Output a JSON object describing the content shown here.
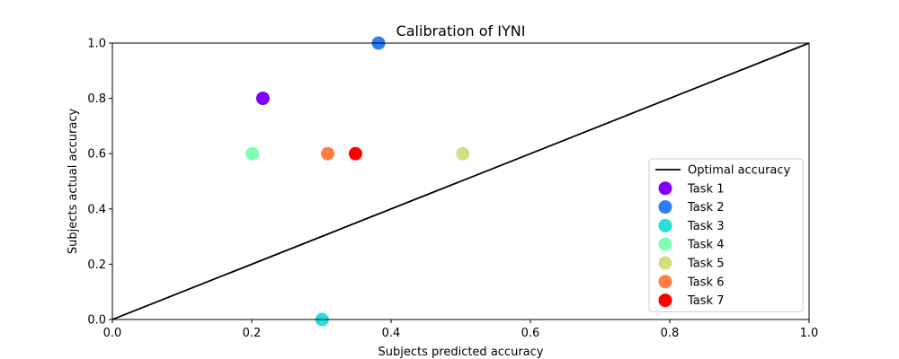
{
  "chart_data": {
    "type": "scatter",
    "title": "Calibration of IYNI",
    "xlabel": "Subjects predicted accuracy",
    "ylabel": "Subjects actual accuracy",
    "xlim": [
      0.0,
      1.0
    ],
    "ylim": [
      0.0,
      1.0
    ],
    "xticks": [
      "0.0",
      "0.2",
      "0.4",
      "0.6",
      "0.8",
      "1.0"
    ],
    "yticks": [
      "0.0",
      "0.2",
      "0.4",
      "0.6",
      "0.8",
      "1.0"
    ],
    "grid": false,
    "legend_position": "lower-right",
    "reference_line": {
      "name": "Optimal accuracy",
      "x": [
        0.0,
        1.0
      ],
      "y": [
        0.0,
        1.0
      ],
      "color": "#000000"
    },
    "series": [
      {
        "name": "Task 1",
        "x": 0.216,
        "y": 0.8,
        "color": "#8000ff"
      },
      {
        "name": "Task 2",
        "x": 0.382,
        "y": 1.0,
        "color": "#2c7ef8"
      },
      {
        "name": "Task 3",
        "x": 0.301,
        "y": 0.0,
        "color": "#2adddd"
      },
      {
        "name": "Task 4",
        "x": 0.201,
        "y": 0.6,
        "color": "#80ffb4"
      },
      {
        "name": "Task 5",
        "x": 0.503,
        "y": 0.6,
        "color": "#d4dd80"
      },
      {
        "name": "Task 6",
        "x": 0.309,
        "y": 0.6,
        "color": "#ff7e41"
      },
      {
        "name": "Task 7",
        "x": 0.349,
        "y": 0.6,
        "color": "#ff0000"
      }
    ]
  }
}
